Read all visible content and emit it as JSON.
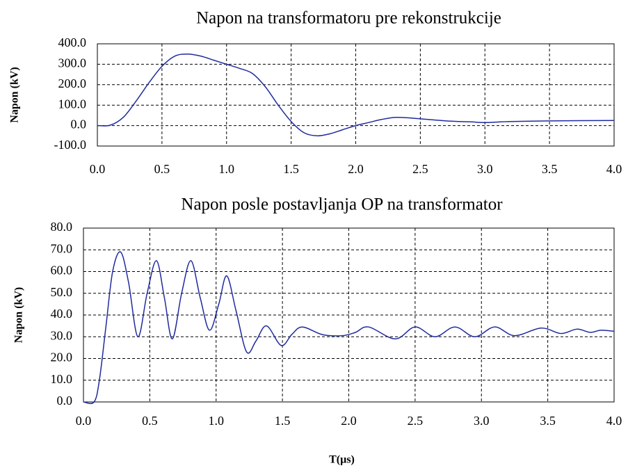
{
  "chart_data": [
    {
      "type": "line",
      "title": "Napon na transformatoru pre rekonstrukcije",
      "ylabel": "Napon (kV)",
      "color": "#1f2a9e",
      "grid": true,
      "x": [
        0,
        0.1,
        0.2,
        0.3,
        0.4,
        0.5,
        0.6,
        0.7,
        0.8,
        0.9,
        1.0,
        1.1,
        1.2,
        1.3,
        1.4,
        1.5,
        1.6,
        1.7,
        1.8,
        1.9,
        2.0,
        2.1,
        2.2,
        2.3,
        2.4,
        2.5,
        2.6,
        2.7,
        2.8,
        2.9,
        3.0,
        3.2,
        3.5,
        4.0
      ],
      "values": [
        0,
        2,
        40,
        120,
        210,
        290,
        340,
        350,
        340,
        320,
        300,
        280,
        255,
        190,
        100,
        20,
        -35,
        -50,
        -40,
        -20,
        0,
        15,
        30,
        40,
        38,
        33,
        28,
        23,
        20,
        18,
        15,
        20,
        23,
        25
      ],
      "xlim": [
        0,
        4
      ],
      "ylim": [
        -100,
        400
      ],
      "xticks": [
        {
          "value": 0,
          "label": "0.0"
        },
        0.5,
        {
          "value": 1,
          "label": "1.0"
        },
        1.5,
        {
          "value": 2,
          "label": "2.0"
        },
        2.5,
        {
          "value": 3,
          "label": "3.0"
        },
        3.5,
        {
          "value": 4,
          "label": "4.0"
        }
      ],
      "yticks": [
        {
          "value": -100,
          "label": "-100.0"
        },
        {
          "value": 0,
          "label": "0.0"
        },
        {
          "value": 100,
          "label": "100.0"
        },
        {
          "value": 200,
          "label": "200.0"
        },
        {
          "value": 300,
          "label": "300.0"
        },
        {
          "value": 400,
          "label": "400.0"
        }
      ]
    },
    {
      "type": "line",
      "title": "Napon posle postavljanja OP na transformator",
      "ylabel": "Napon (kV)",
      "xlabel": "T(µs)",
      "color": "#1f2a9e",
      "grid": true,
      "x": [
        0,
        0.08,
        0.12,
        0.17,
        0.22,
        0.28,
        0.34,
        0.41,
        0.48,
        0.55,
        0.61,
        0.67,
        0.74,
        0.81,
        0.88,
        0.95,
        1.02,
        1.08,
        1.15,
        1.23,
        1.3,
        1.38,
        1.49,
        1.57,
        1.65,
        1.8,
        1.95,
        2.05,
        2.15,
        2.35,
        2.5,
        2.65,
        2.8,
        2.95,
        3.1,
        3.25,
        3.45,
        3.6,
        3.72,
        3.82,
        3.9,
        4.0
      ],
      "values": [
        0,
        0,
        10,
        35,
        60,
        69,
        55,
        30,
        50,
        65,
        48,
        29,
        50,
        65,
        48,
        33,
        45,
        58,
        42,
        23,
        28,
        35,
        26,
        31,
        34.5,
        31,
        30.5,
        32,
        34.5,
        29,
        34.5,
        30,
        34.5,
        30,
        34.5,
        30.5,
        34,
        31.5,
        33.5,
        32,
        33,
        32.5
      ],
      "xlim": [
        0,
        4
      ],
      "ylim": [
        0,
        80
      ],
      "xticks": [
        {
          "value": 0,
          "label": "0.0"
        },
        0.5,
        {
          "value": 1,
          "label": "1.0"
        },
        1.5,
        {
          "value": 2,
          "label": "2.0"
        },
        2.5,
        {
          "value": 3,
          "label": "3.0"
        },
        3.5,
        {
          "value": 4,
          "label": "4.0"
        }
      ],
      "yticks": [
        {
          "value": 0,
          "label": "0.0"
        },
        {
          "value": 10,
          "label": "10.0"
        },
        {
          "value": 20,
          "label": "20.0"
        },
        {
          "value": 30,
          "label": "30.0"
        },
        {
          "value": 40,
          "label": "40.0"
        },
        {
          "value": 50,
          "label": "50.0"
        },
        {
          "value": 60,
          "label": "60.0"
        },
        {
          "value": 70,
          "label": "70.0"
        },
        {
          "value": 80,
          "label": "80.0"
        }
      ]
    }
  ]
}
